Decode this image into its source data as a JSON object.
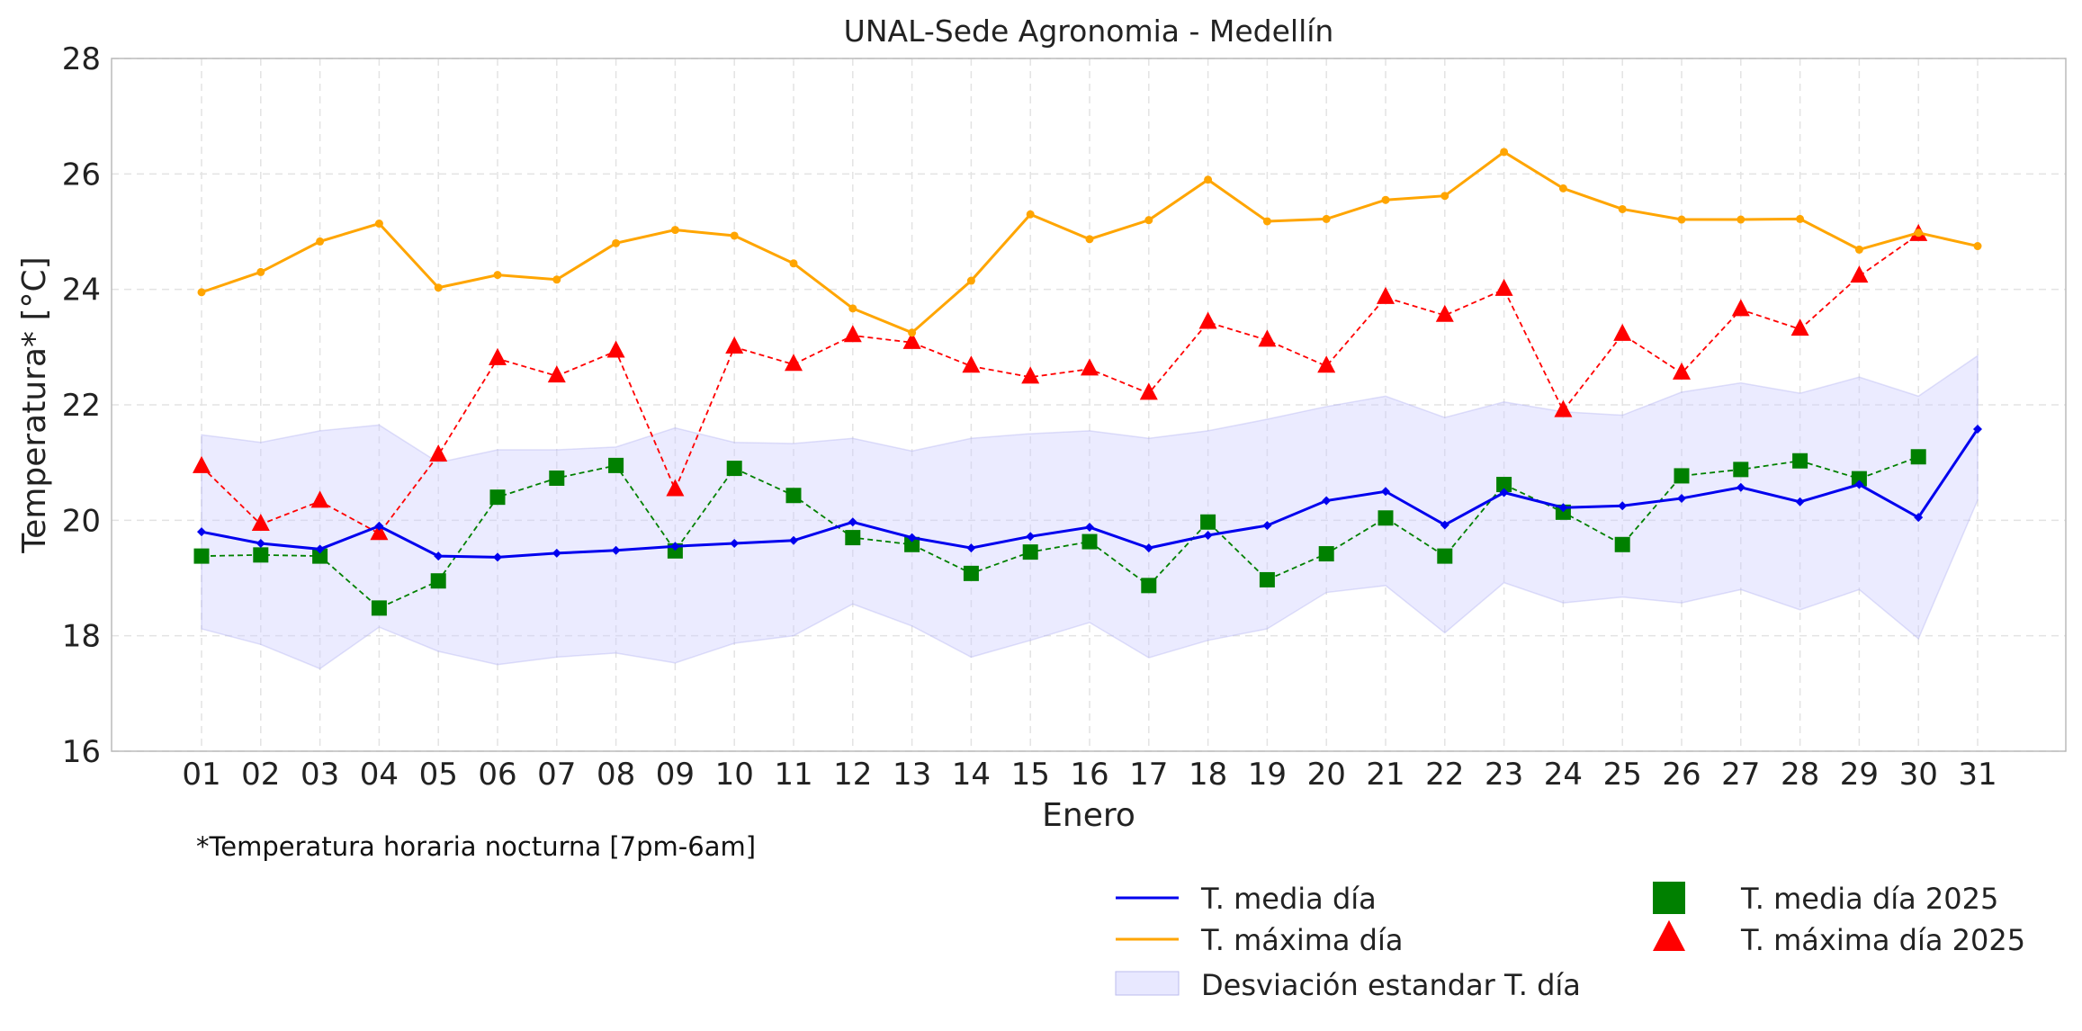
{
  "chart_data": {
    "type": "line",
    "title": "UNAL-Sede Agronomia - Medellín",
    "xlabel": "Enero",
    "ylabel": "Temperatura* [°C]",
    "ylim": [
      16,
      28
    ],
    "yticks": [
      "16",
      "18",
      "20",
      "22",
      "24",
      "26",
      "28"
    ],
    "grid": true,
    "legend_position": "bottom-right",
    "categories": [
      "01",
      "02",
      "03",
      "04",
      "05",
      "06",
      "07",
      "08",
      "09",
      "10",
      "11",
      "12",
      "13",
      "14",
      "15",
      "16",
      "17",
      "18",
      "19",
      "20",
      "21",
      "22",
      "23",
      "24",
      "25",
      "26",
      "27",
      "28",
      "29",
      "30",
      "31"
    ],
    "series": [
      {
        "name": "T. media día",
        "kind": "line",
        "color": "#0000ee",
        "marker": "diamond",
        "values": [
          19.8,
          19.6,
          19.5,
          19.9,
          19.38,
          19.36,
          19.43,
          19.48,
          19.55,
          19.6,
          19.65,
          19.97,
          19.7,
          19.52,
          19.72,
          19.88,
          19.52,
          19.74,
          19.91,
          20.34,
          20.5,
          19.92,
          20.48,
          20.22,
          20.25,
          20.38,
          20.57,
          20.32,
          20.62,
          20.05,
          21.58
        ]
      },
      {
        "name": "T. máxima día",
        "kind": "line",
        "color": "#ffa500",
        "marker": "circle",
        "values": [
          23.95,
          24.3,
          24.83,
          25.14,
          24.03,
          24.25,
          24.17,
          24.8,
          25.03,
          24.93,
          24.45,
          23.67,
          23.25,
          24.15,
          25.3,
          24.87,
          25.2,
          25.9,
          25.18,
          25.22,
          25.55,
          25.62,
          26.38,
          25.75,
          25.39,
          25.21,
          25.21,
          25.22,
          24.69,
          24.98,
          24.75
        ]
      },
      {
        "name": "T. media día 2025",
        "kind": "marker-dashed",
        "color": "#008000",
        "marker": "square",
        "values": [
          19.38,
          19.4,
          19.38,
          18.48,
          18.95,
          20.4,
          20.73,
          20.95,
          19.47,
          20.9,
          20.43,
          19.7,
          19.58,
          19.08,
          19.45,
          19.63,
          18.87,
          19.97,
          18.97,
          19.42,
          20.04,
          19.38,
          20.62,
          20.14,
          19.58,
          20.77,
          20.88,
          21.03,
          20.72,
          21.1,
          null
        ]
      },
      {
        "name": "T. máxima día 2025",
        "kind": "marker-dashed",
        "color": "#ff0000",
        "marker": "triangle",
        "values": [
          20.93,
          19.93,
          20.33,
          19.77,
          21.13,
          22.8,
          22.5,
          22.93,
          20.53,
          23.0,
          22.7,
          23.2,
          23.08,
          22.67,
          22.48,
          22.62,
          22.2,
          23.43,
          23.12,
          22.67,
          23.86,
          23.55,
          24.0,
          21.9,
          23.22,
          22.55,
          23.65,
          23.31,
          24.23,
          24.95,
          null
        ]
      }
    ],
    "band": {
      "name": "Desviación estandar T. día",
      "color": "#ccccff",
      "upper": [
        21.48,
        21.35,
        21.55,
        21.65,
        21.0,
        21.22,
        21.22,
        21.27,
        21.6,
        21.35,
        21.33,
        21.42,
        21.2,
        21.42,
        21.5,
        21.55,
        21.42,
        21.55,
        21.75,
        21.97,
        22.15,
        21.78,
        22.05,
        21.88,
        21.82,
        22.22,
        22.38,
        22.2,
        22.48,
        22.15,
        22.85
      ],
      "lower": [
        18.12,
        17.85,
        17.43,
        18.15,
        17.73,
        17.5,
        17.63,
        17.7,
        17.53,
        17.87,
        18.0,
        18.55,
        18.17,
        17.63,
        17.92,
        18.23,
        17.62,
        17.92,
        18.12,
        18.75,
        18.87,
        18.05,
        18.92,
        18.57,
        18.67,
        18.57,
        18.8,
        18.45,
        18.8,
        17.95,
        20.35
      ]
    },
    "legend": [
      {
        "label": "T. media día",
        "color": "#0000ee",
        "symbol": "line"
      },
      {
        "label": "T. máxima día",
        "color": "#ffa500",
        "symbol": "line"
      },
      {
        "label": "Desviación estandar T. día",
        "color": "#ccccff",
        "symbol": "patch"
      },
      {
        "label": "T. media día 2025",
        "color": "#008000",
        "symbol": "square"
      },
      {
        "label": "T. máxima día 2025",
        "color": "#ff0000",
        "symbol": "triangle"
      }
    ]
  },
  "footnote": "*Temperatura horaria nocturna [7pm-6am]"
}
